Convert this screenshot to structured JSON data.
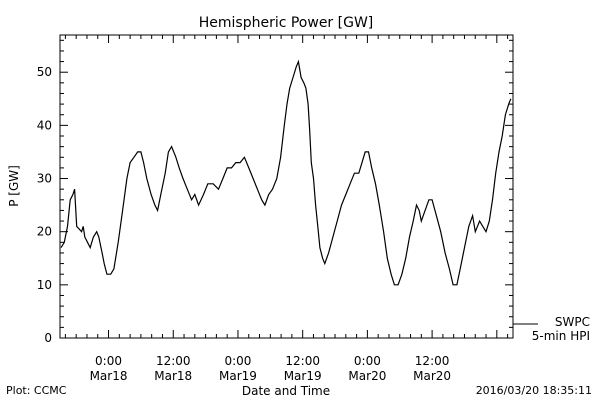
{
  "footer": {
    "plot_credit": "Plot: CCMC",
    "timestamp": "2016/03/20 18:35:11"
  },
  "legend": {
    "source": "SWPC",
    "series": "5-min HPI"
  },
  "chart_data": {
    "type": "line",
    "title": "Hemispheric Power [GW]",
    "xlabel": "Date and Time",
    "ylabel": "P [GW]",
    "ylim": [
      0,
      57
    ],
    "xlim_hours": [
      -4.5,
      37.5
    ],
    "x_ticks": [
      {
        "hour": 0,
        "time": "0:00",
        "date": "Mar18"
      },
      {
        "hour": 6,
        "time": "12:00",
        "date": "Mar18"
      },
      {
        "hour": 12,
        "time": "0:00",
        "date": "Mar19"
      },
      {
        "hour": 18,
        "time": "12:00",
        "date": "Mar19"
      },
      {
        "hour": 24,
        "time": "0:00",
        "date": "Mar20"
      },
      {
        "hour": 30,
        "time": "12:00",
        "date": "Mar20"
      }
    ],
    "y_ticks": [
      0,
      10,
      20,
      30,
      40,
      50
    ],
    "series": [
      {
        "name": "5-min HPI",
        "color": "#000000",
        "points": [
          [
            -4.4,
            17
          ],
          [
            -4.1,
            18
          ],
          [
            -3.8,
            21
          ],
          [
            -3.55,
            26
          ],
          [
            -3.3,
            27
          ],
          [
            -3.15,
            28
          ],
          [
            -2.95,
            21
          ],
          [
            -2.5,
            20
          ],
          [
            -2.35,
            21
          ],
          [
            -2.2,
            19
          ],
          [
            -1.95,
            18
          ],
          [
            -1.7,
            17
          ],
          [
            -1.4,
            19
          ],
          [
            -1.1,
            20
          ],
          [
            -0.9,
            19
          ],
          [
            -0.6,
            16
          ],
          [
            -0.4,
            14
          ],
          [
            -0.15,
            12
          ],
          [
            0.2,
            12
          ],
          [
            0.5,
            13
          ],
          [
            0.9,
            18
          ],
          [
            1.3,
            24
          ],
          [
            1.7,
            30
          ],
          [
            2.0,
            33
          ],
          [
            2.35,
            34
          ],
          [
            2.7,
            35
          ],
          [
            3.0,
            35
          ],
          [
            3.25,
            33
          ],
          [
            3.55,
            30
          ],
          [
            3.95,
            27
          ],
          [
            4.3,
            25
          ],
          [
            4.55,
            24
          ],
          [
            4.85,
            27
          ],
          [
            5.25,
            31
          ],
          [
            5.55,
            35
          ],
          [
            5.85,
            36
          ],
          [
            6.25,
            34
          ],
          [
            6.55,
            32
          ],
          [
            6.9,
            30
          ],
          [
            7.3,
            28
          ],
          [
            7.7,
            26
          ],
          [
            8.0,
            27
          ],
          [
            8.35,
            25
          ],
          [
            8.8,
            27
          ],
          [
            9.2,
            29
          ],
          [
            9.7,
            29
          ],
          [
            10.2,
            28
          ],
          [
            10.6,
            30
          ],
          [
            11.0,
            32
          ],
          [
            11.4,
            32
          ],
          [
            11.8,
            33
          ],
          [
            12.2,
            33
          ],
          [
            12.6,
            34
          ],
          [
            13.0,
            32
          ],
          [
            13.4,
            30
          ],
          [
            13.8,
            28
          ],
          [
            14.2,
            26
          ],
          [
            14.5,
            25
          ],
          [
            14.85,
            27
          ],
          [
            15.2,
            28
          ],
          [
            15.6,
            30
          ],
          [
            15.95,
            34
          ],
          [
            16.3,
            40
          ],
          [
            16.55,
            44
          ],
          [
            16.8,
            47
          ],
          [
            17.1,
            49
          ],
          [
            17.4,
            51
          ],
          [
            17.6,
            52
          ],
          [
            17.85,
            49
          ],
          [
            18.1,
            48
          ],
          [
            18.3,
            47
          ],
          [
            18.5,
            44
          ],
          [
            18.65,
            39
          ],
          [
            18.8,
            33
          ],
          [
            19.0,
            30
          ],
          [
            19.2,
            25
          ],
          [
            19.4,
            21
          ],
          [
            19.6,
            17
          ],
          [
            19.85,
            15
          ],
          [
            20.05,
            14
          ],
          [
            20.4,
            16
          ],
          [
            20.8,
            19
          ],
          [
            21.2,
            22
          ],
          [
            21.6,
            25
          ],
          [
            22.0,
            27
          ],
          [
            22.4,
            29
          ],
          [
            22.8,
            31
          ],
          [
            23.2,
            31
          ],
          [
            23.5,
            33
          ],
          [
            23.8,
            35
          ],
          [
            24.1,
            35
          ],
          [
            24.4,
            32
          ],
          [
            24.75,
            29
          ],
          [
            25.1,
            25
          ],
          [
            25.5,
            20
          ],
          [
            25.85,
            15
          ],
          [
            26.2,
            12
          ],
          [
            26.5,
            10
          ],
          [
            26.85,
            10
          ],
          [
            27.2,
            12
          ],
          [
            27.55,
            15
          ],
          [
            27.9,
            19
          ],
          [
            28.25,
            22
          ],
          [
            28.55,
            25
          ],
          [
            28.8,
            24
          ],
          [
            29.0,
            22
          ],
          [
            29.35,
            24
          ],
          [
            29.7,
            26
          ],
          [
            30.0,
            26
          ],
          [
            30.4,
            23
          ],
          [
            30.8,
            20
          ],
          [
            31.2,
            16
          ],
          [
            31.6,
            13
          ],
          [
            31.95,
            10
          ],
          [
            32.3,
            10
          ],
          [
            32.6,
            13
          ],
          [
            33.0,
            17
          ],
          [
            33.4,
            21
          ],
          [
            33.75,
            23
          ],
          [
            34.0,
            20
          ],
          [
            34.4,
            22
          ],
          [
            34.7,
            21
          ],
          [
            35.0,
            20
          ],
          [
            35.3,
            22
          ],
          [
            35.6,
            26
          ],
          [
            35.9,
            31
          ],
          [
            36.2,
            35
          ],
          [
            36.5,
            38
          ],
          [
            36.8,
            42
          ],
          [
            37.1,
            44
          ],
          [
            37.3,
            45
          ]
        ]
      }
    ]
  }
}
